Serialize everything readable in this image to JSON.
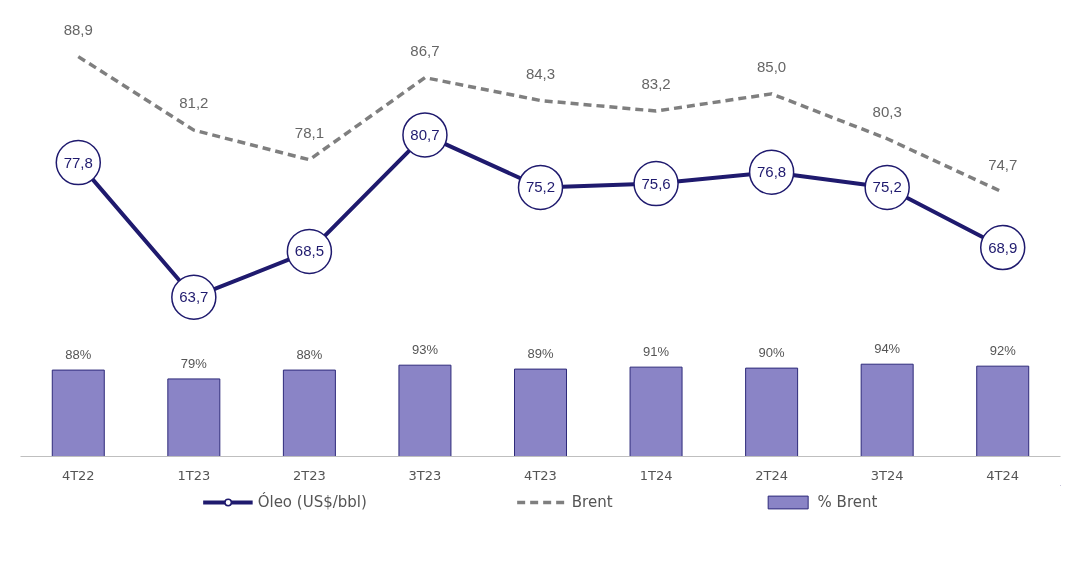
{
  "chart_data": [
    {
      "type": "line",
      "categories": [
        null,
        null,
        null,
        null,
        null,
        null,
        null,
        null,
        null
      ],
      "series": [
        {
          "name": "Óleo (US$/bbl)",
          "color": "#1f1a6e",
          "marker": "circle",
          "line_style": "solid",
          "values": [
            77.8,
            63.7,
            68.5,
            80.7,
            75.2,
            75.6,
            76.8,
            75.2,
            68.9
          ],
          "value_labels": [
            "77,8",
            "63,7",
            "68,5",
            "80,7",
            "75,2",
            "75,6",
            "76,8",
            "75,2",
            "68,9"
          ]
        },
        {
          "name": "Brent",
          "color": "#7f7f7f",
          "marker": "none",
          "line_style": "dashed",
          "values": [
            88.9,
            81.2,
            78.1,
            86.7,
            84.3,
            83.2,
            85.0,
            80.3,
            74.7
          ],
          "value_labels": [
            "88,9",
            "81,2",
            "78,1",
            "86,7",
            "84,3",
            "83,2",
            "85,0",
            "80,3",
            "74,7"
          ]
        }
      ],
      "data_labels": true,
      "grid": false,
      "legend": "bottom",
      "tick_labels": false
    },
    {
      "type": "bar",
      "categories": [
        "4T22",
        "1T23",
        "2T23",
        "3T23",
        "4T23",
        "1T24",
        "2T24",
        "3T24",
        "4T24"
      ],
      "series": [
        {
          "name": "% Brent",
          "color": "#8a84c6",
          "values": [
            88,
            79,
            88,
            93,
            89,
            91,
            90,
            94,
            92
          ],
          "value_labels": [
            "88%",
            "79%",
            "88%",
            "93%",
            "89%",
            "91%",
            "90%",
            "94%",
            "92%"
          ]
        }
      ],
      "data_labels": true,
      "grid": false,
      "legend": "bottom",
      "tick_labels": "x"
    }
  ]
}
